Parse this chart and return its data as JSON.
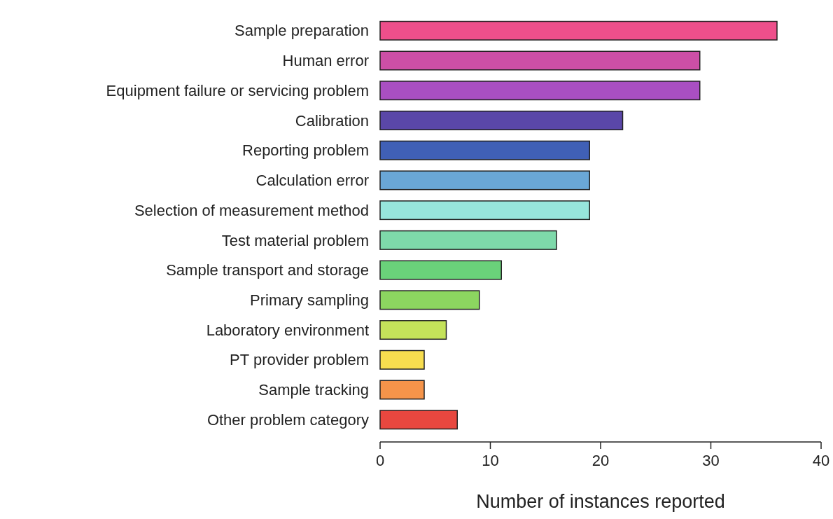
{
  "chart_data": {
    "type": "bar",
    "orientation": "horizontal",
    "xlabel": "Number of instances reported",
    "categories": [
      "Sample preparation",
      "Human error",
      "Equipment failure or servicing problem",
      "Calibration",
      "Reporting problem",
      "Calculation error",
      "Selection of measurement method",
      "Test material problem",
      "Sample transport and storage",
      "Primary sampling",
      "Laboratory environment",
      "PT provider problem",
      "Sample tracking",
      "Other problem category"
    ],
    "values": [
      36,
      29,
      29,
      22,
      19,
      19,
      19,
      16,
      11,
      9,
      6,
      4,
      4,
      7
    ],
    "colors": [
      "#ee4f8b",
      "#cc4fa6",
      "#a94fc2",
      "#5a47a8",
      "#4060b6",
      "#6aa7d6",
      "#97e5dc",
      "#7ed9aa",
      "#6ad27a",
      "#8cd660",
      "#c4e25a",
      "#f7dd4f",
      "#f5944a",
      "#e8473f"
    ],
    "xlim": [
      0,
      40
    ],
    "xticks": [
      0,
      10,
      20,
      30,
      40
    ],
    "grid": false
  }
}
